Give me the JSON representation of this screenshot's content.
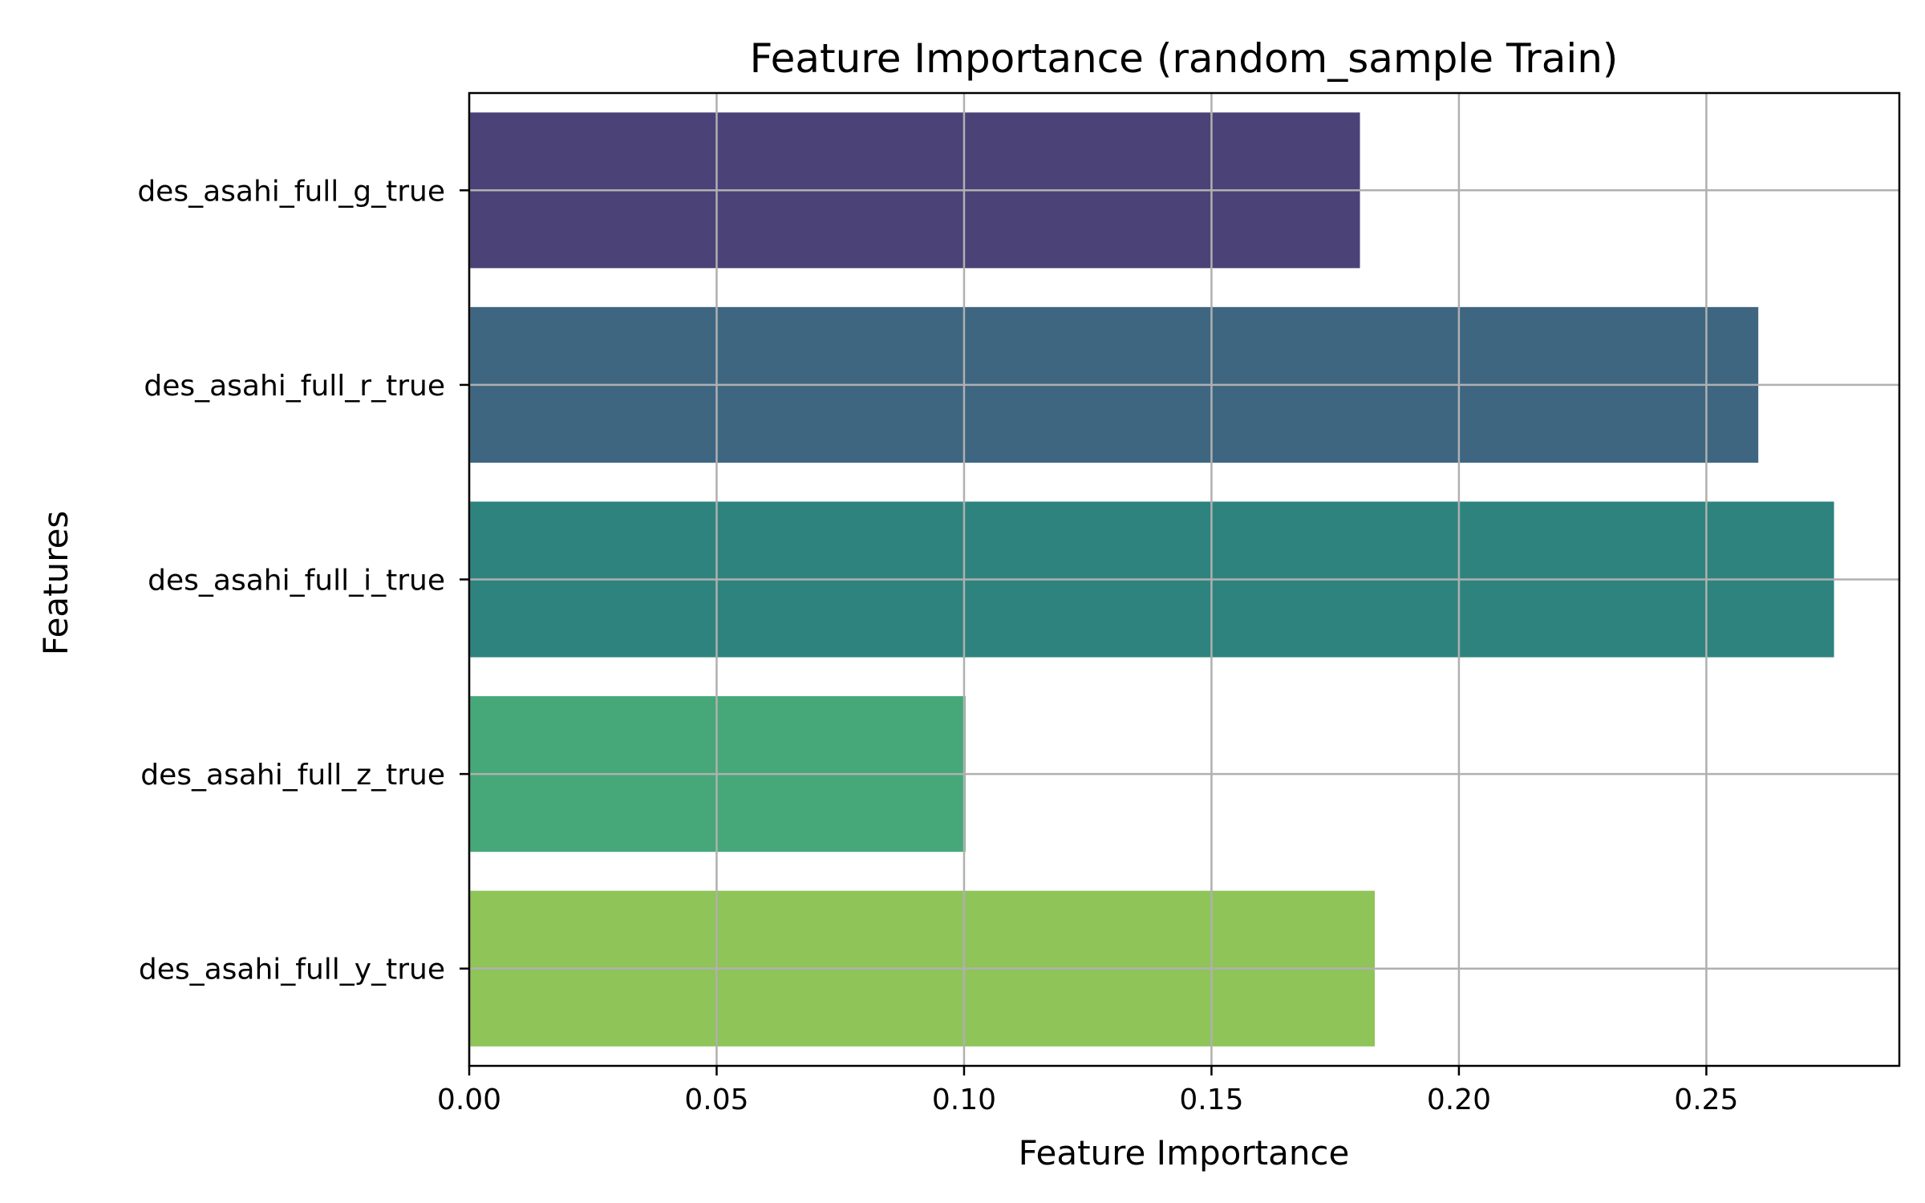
{
  "chart_data": {
    "type": "bar",
    "orientation": "horizontal",
    "title": "Feature Importance (random_sample Train)",
    "xlabel": "Feature Importance",
    "ylabel": "Features",
    "categories": [
      "des_asahi_full_g_true",
      "des_asahi_full_r_true",
      "des_asahi_full_i_true",
      "des_asahi_full_z_true",
      "des_asahi_full_y_true"
    ],
    "values": [
      0.18,
      0.2605,
      0.2758,
      0.1003,
      0.183
    ],
    "colors": [
      "#4b4278",
      "#3e6680",
      "#2e837f",
      "#46a878",
      "#8fc459"
    ],
    "xlim": [
      0,
      0.289
    ],
    "xticks": [
      0.0,
      0.05,
      0.1,
      0.15,
      0.2,
      0.25
    ],
    "xtick_labels": [
      "0.00",
      "0.05",
      "0.10",
      "0.15",
      "0.20",
      "0.25"
    ],
    "grid": true
  }
}
